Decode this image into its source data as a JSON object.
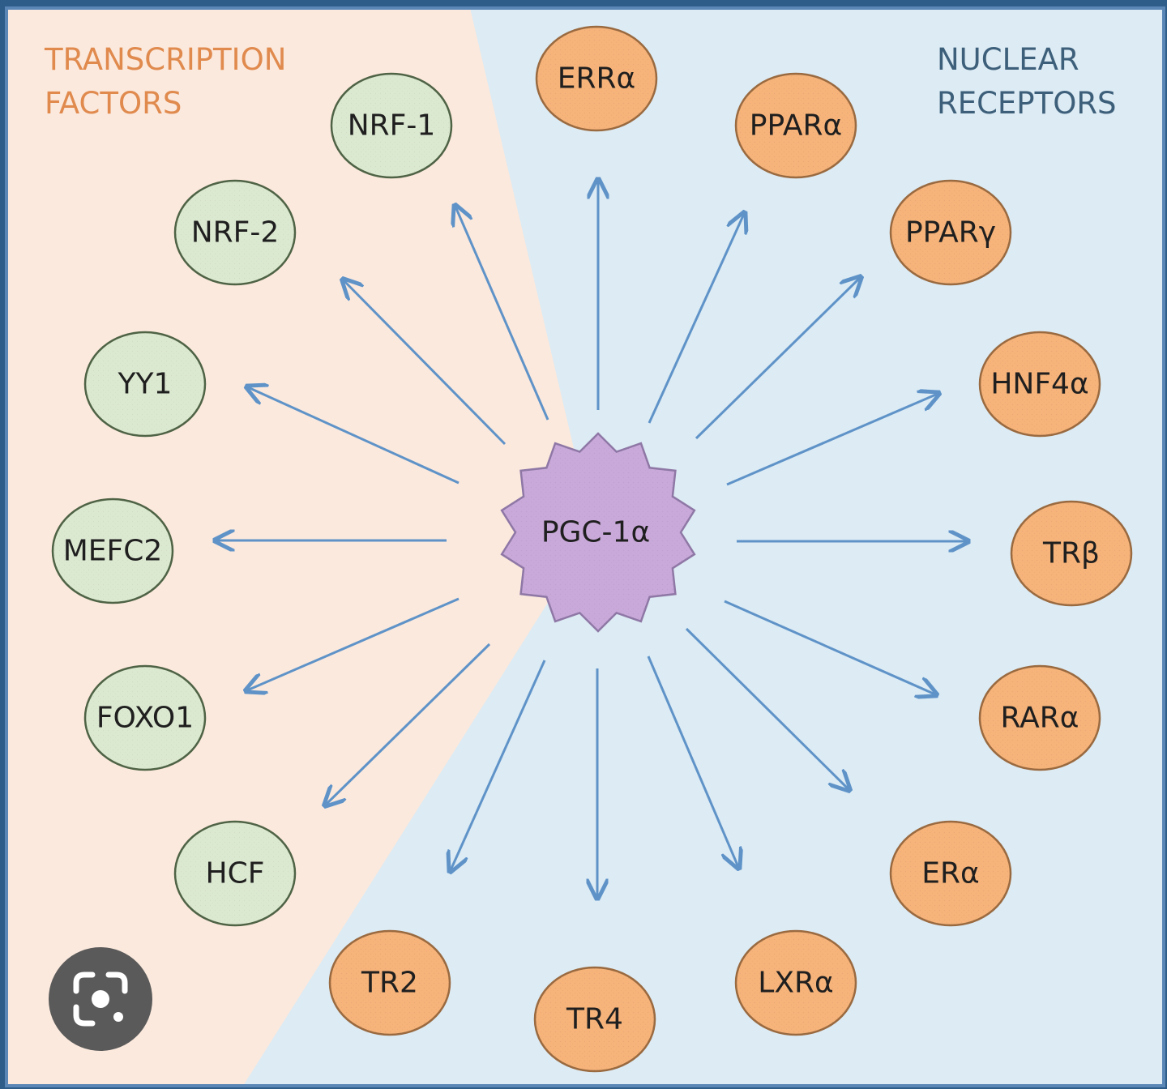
{
  "colors": {
    "left_panel_bg": "#fbe9dd",
    "right_panel_bg": "#dcebf4",
    "border": "#5b87b7",
    "arrow": "#5f93c8",
    "tf_fill": "#dce9d1",
    "tf_stroke": "#4f6345",
    "nr_fill": "#f6b37a",
    "nr_stroke": "#9a6a40",
    "hub_fill": "#c9a9d9",
    "hub_stroke": "#8f78a6",
    "left_title": "#e08a4e",
    "right_title": "#3d5f7a"
  },
  "left_title": [
    "TRANSCRIPTION",
    "FACTORS"
  ],
  "right_title": [
    "NUCLEAR",
    "RECEPTORS"
  ],
  "hub": {
    "label": "PGC-1α"
  },
  "transcription_factors": [
    "NRF-1",
    "NRF-2",
    "YY1",
    "MEFC2",
    "FOXO1",
    "HCF"
  ],
  "nuclear_receptors": [
    "ERRα",
    "PPARα",
    "PPARγ",
    "HNF4α",
    "TRβ",
    "RARα",
    "ERα",
    "LXRα",
    "TR4",
    "TR2"
  ],
  "overlay": {
    "icon": "lens-camera-icon"
  }
}
